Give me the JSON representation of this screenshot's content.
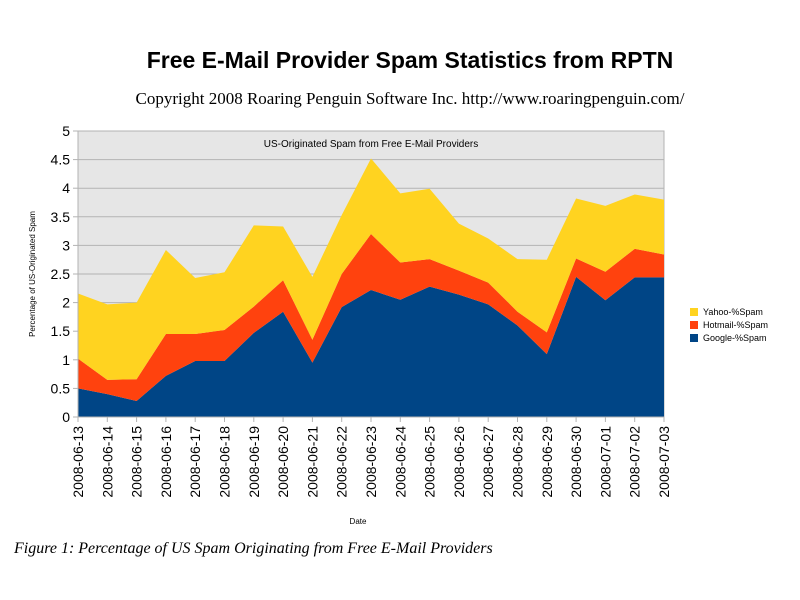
{
  "page": {
    "title": "Free E-Mail Provider Spam Statistics from RPTN",
    "subtitle": "Copyright 2008 Roaring Penguin Software Inc.  http://www.roaringpenguin.com/",
    "caption": "Figure 1: Percentage of US Spam Originating from Free E-Mail Providers"
  },
  "chart_data": {
    "type": "area",
    "stacked": true,
    "title": "US-Originated Spam from Free E-Mail Providers",
    "xlabel": "Date",
    "ylabel": "Percentage of US-Originated Spam",
    "ylim": [
      0,
      5
    ],
    "yticks": [
      0,
      0.5,
      1,
      1.5,
      2,
      2.5,
      3,
      3.5,
      4,
      4.5,
      5
    ],
    "ytick_labels": [
      "0",
      "0.5",
      "1",
      "1.5",
      "2",
      "2.5",
      "3",
      "3.5",
      "4",
      "4.5",
      "5"
    ],
    "grid": true,
    "legend_position": "right",
    "plot_background": "#e6e6e6",
    "x": [
      "2008-06-13",
      "2008-06-14",
      "2008-06-15",
      "2008-06-16",
      "2008-06-17",
      "2008-06-18",
      "2008-06-19",
      "2008-06-20",
      "2008-06-21",
      "2008-06-22",
      "2008-06-23",
      "2008-06-24",
      "2008-06-25",
      "2008-06-26",
      "2008-06-27",
      "2008-06-28",
      "2008-06-29",
      "2008-06-30",
      "2008-07-01",
      "2008-07-02",
      "2008-07-03"
    ],
    "series": [
      {
        "name": "Google-%Spam",
        "color": "#004586",
        "values": [
          0.5,
          0.4,
          0.28,
          0.72,
          0.98,
          0.98,
          1.47,
          1.84,
          0.95,
          1.92,
          2.22,
          2.05,
          2.28,
          2.14,
          1.97,
          1.6,
          1.1,
          2.45,
          2.04,
          2.44,
          2.44
        ]
      },
      {
        "name": "Hotmail-%Spam",
        "color": "#ff420e",
        "values": [
          0.52,
          0.25,
          0.38,
          0.73,
          0.47,
          0.54,
          0.46,
          0.55,
          0.4,
          0.58,
          0.98,
          0.65,
          0.48,
          0.42,
          0.38,
          0.24,
          0.38,
          0.32,
          0.5,
          0.5,
          0.4
        ]
      },
      {
        "name": "Yahoo-%Spam",
        "color": "#ffd320",
        "values": [
          1.14,
          1.32,
          1.34,
          1.47,
          0.98,
          1.01,
          1.42,
          0.94,
          1.1,
          1.03,
          1.32,
          1.21,
          1.23,
          0.82,
          0.77,
          0.92,
          1.27,
          1.05,
          1.15,
          0.95,
          0.96
        ]
      }
    ]
  }
}
